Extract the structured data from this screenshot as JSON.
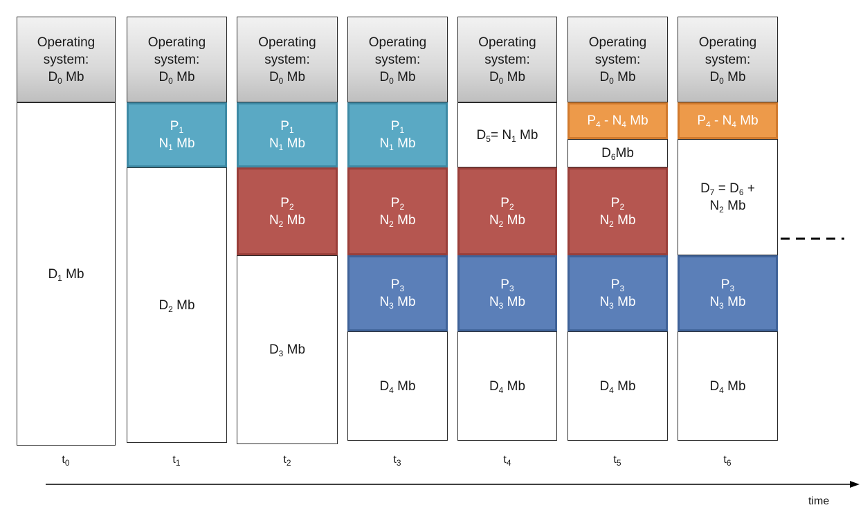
{
  "os": {
    "line1": "Operating",
    "line2": "system:",
    "d": "D",
    "d_sub": "0",
    "unit": " Mb"
  },
  "processes": {
    "p1": {
      "name": "P",
      "name_sub": "1",
      "size": "N",
      "size_sub": "1",
      "unit": " Mb"
    },
    "p2": {
      "name": "P",
      "name_sub": "2",
      "size": "N",
      "size_sub": "2",
      "unit": " Mb"
    },
    "p3": {
      "name": "P",
      "name_sub": "3",
      "size": "N",
      "size_sub": "3",
      "unit": " Mb"
    },
    "p4": {
      "name": "P",
      "name_sub": "4",
      "sep": " - N",
      "size_sub": "4",
      "unit": " Mb"
    }
  },
  "free": {
    "d1": {
      "name": "D",
      "sub": "1",
      "unit": " Mb"
    },
    "d2": {
      "name": "D",
      "sub": "2",
      "unit": " Mb"
    },
    "d3": {
      "name": "D",
      "sub": "3",
      "unit": " Mb"
    },
    "d4": {
      "name": "D",
      "sub": "4",
      "unit": " Mb"
    },
    "d5": {
      "name": "D",
      "sub": "5",
      "eq": "= N",
      "eq_sub": "1",
      "unit": " Mb"
    },
    "d6": {
      "name": "D",
      "sub": "6",
      "unit": "Mb"
    },
    "d7": {
      "name": "D",
      "sub": "7",
      "eq": " = D",
      "eq_sub": "6",
      "plus": " +",
      "n": "N",
      "n_sub": "2",
      "unit": " Mb"
    }
  },
  "time_labels": [
    {
      "t": "t",
      "sub": "0"
    },
    {
      "t": "t",
      "sub": "1"
    },
    {
      "t": "t",
      "sub": "2"
    },
    {
      "t": "t",
      "sub": "3"
    },
    {
      "t": "t",
      "sub": "4"
    },
    {
      "t": "t",
      "sub": "5"
    },
    {
      "t": "t",
      "sub": "6"
    }
  ],
  "axis_label": "time",
  "colors": {
    "p1": "#5aa9c4",
    "p2": "#b55650",
    "p3": "#5b7fb8",
    "p4": "#ed9a4a",
    "os": "#d9d9d9"
  }
}
